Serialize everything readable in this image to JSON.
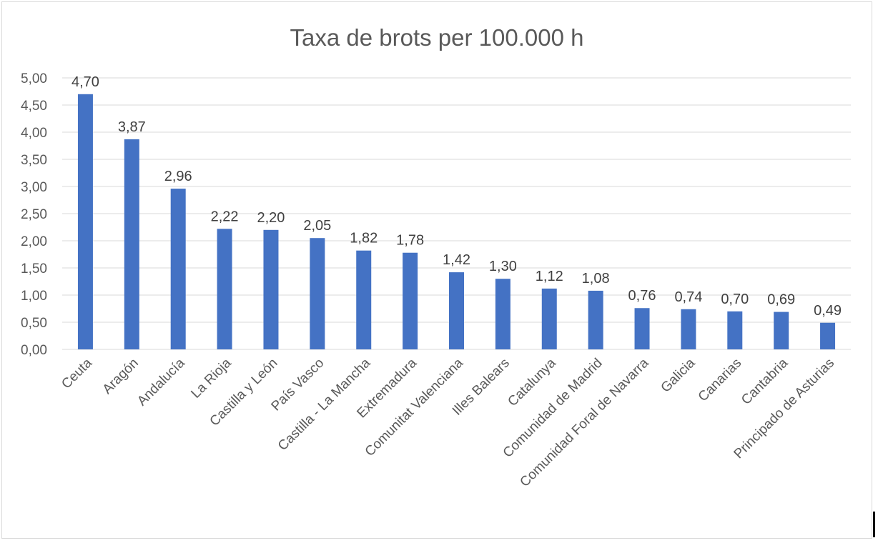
{
  "chart_data": {
    "type": "bar",
    "title": "Taxa de brots per 100.000 h",
    "categories": [
      "Ceuta",
      "Aragón",
      "Andalucía",
      "La Rioja",
      "Castilla y León",
      "País Vasco",
      "Castilla - La Mancha",
      "Extremadura",
      "Comunitat Valenciana",
      "Illes Balears",
      "Catalunya",
      "Comunidad de Madrid",
      "Comunidad Foral de Navarra",
      "Galicia",
      "Canarias",
      "Cantabria",
      "Principado de Asturias"
    ],
    "values": [
      4.7,
      3.87,
      2.96,
      2.22,
      2.2,
      2.05,
      1.82,
      1.78,
      1.42,
      1.3,
      1.12,
      1.08,
      0.76,
      0.74,
      0.7,
      0.69,
      0.49
    ],
    "data_labels": [
      "4,70",
      "3,87",
      "2,96",
      "2,22",
      "2,20",
      "2,05",
      "1,82",
      "1,78",
      "1,42",
      "1,30",
      "1,12",
      "1,08",
      "0,76",
      "0,74",
      "0,70",
      "0,69",
      "0,49"
    ],
    "y_ticks": [
      "0,00",
      "0,50",
      "1,00",
      "1,50",
      "2,00",
      "2,50",
      "3,00",
      "3,50",
      "4,00",
      "4,50",
      "5,00"
    ],
    "ylim": [
      0,
      5
    ],
    "grid": true,
    "legend": "none",
    "bar_color": "#4472c4"
  }
}
